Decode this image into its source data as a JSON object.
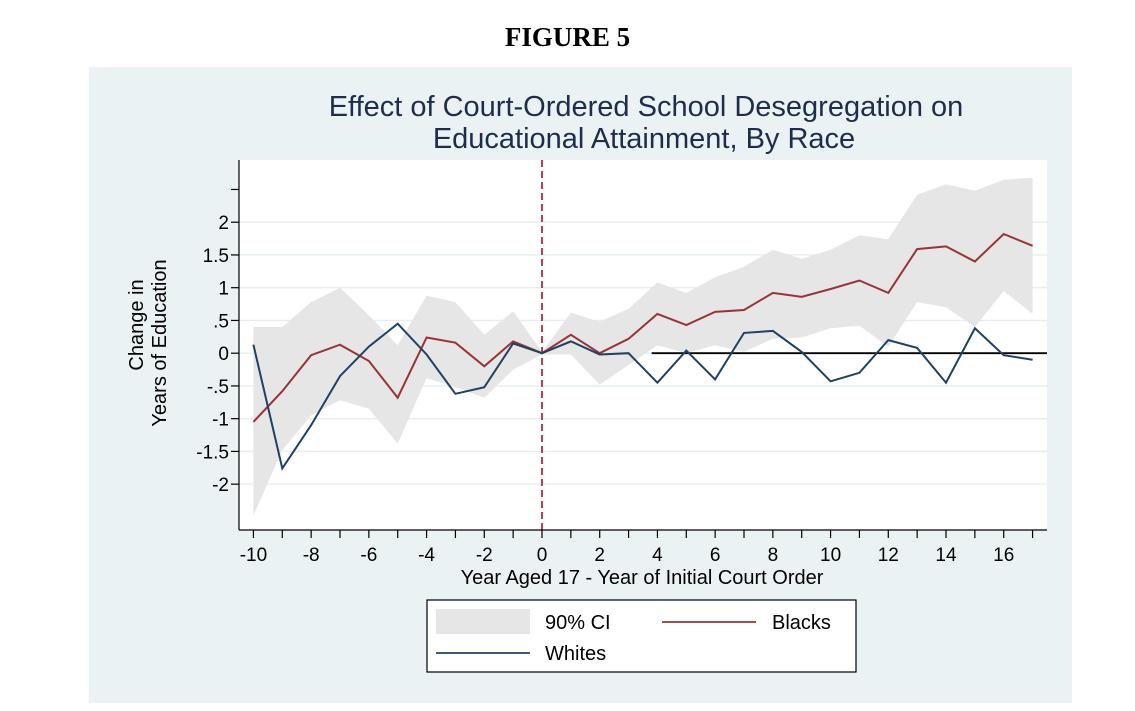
{
  "figure_label": "FIGURE 5",
  "chart_data": {
    "type": "line",
    "title_lines": [
      "Effect of Court-Ordered School Desegregation on",
      "Educational Attainment, By Race"
    ],
    "xlabel": "Year Aged 17 - Year of Initial Court Order",
    "ylabel_lines": [
      "Change in",
      "Years of Education"
    ],
    "xlim": [
      -10.5,
      17.5
    ],
    "ylim": [
      -2.7,
      2.95
    ],
    "x_ticks": [
      -10,
      -8,
      -6,
      -4,
      -2,
      0,
      2,
      4,
      6,
      8,
      10,
      12,
      14,
      16
    ],
    "y_ticks": [
      {
        "value": 2,
        "label": "2"
      },
      {
        "value": 1.5,
        "label": "1.5"
      },
      {
        "value": 1,
        "label": "1"
      },
      {
        "value": 0.5,
        "label": ".5"
      },
      {
        "value": 0,
        "label": "0"
      },
      {
        "value": -0.5,
        "label": "-.5"
      },
      {
        "value": -1,
        "label": "-1"
      },
      {
        "value": -1.5,
        "label": "-1.5"
      },
      {
        "value": -2,
        "label": "-2"
      }
    ],
    "y_minor_ticks": [
      2.5
    ],
    "x": [
      -10,
      -9,
      -8,
      -7,
      -6,
      -5,
      -4,
      -3,
      -2,
      -1,
      0,
      1,
      2,
      3,
      4,
      5,
      6,
      7,
      8,
      9,
      10,
      11,
      12,
      13,
      14,
      15,
      16,
      17
    ],
    "ci": {
      "name": "90% CI",
      "color": "#e6e6e6",
      "upper": [
        0.4,
        0.4,
        0.78,
        1.0,
        0.58,
        0.12,
        0.88,
        0.78,
        0.28,
        0.64,
        0.02,
        0.62,
        0.48,
        0.68,
        1.08,
        0.92,
        1.16,
        1.32,
        1.58,
        1.44,
        1.58,
        1.8,
        1.74,
        2.42,
        2.58,
        2.48,
        2.65,
        2.68
      ],
      "lower": [
        -2.48,
        -1.48,
        -0.95,
        -0.72,
        -0.85,
        -1.38,
        -0.38,
        -0.52,
        -0.68,
        -0.25,
        -0.02,
        -0.02,
        -0.48,
        -0.18,
        0.12,
        0.0,
        0.12,
        0.02,
        0.22,
        0.24,
        0.38,
        0.42,
        0.1,
        0.78,
        0.7,
        0.4,
        0.95,
        0.6
      ]
    },
    "series": [
      {
        "name": "Blacks",
        "color": "#9b3236",
        "values": [
          -1.05,
          -0.58,
          -0.03,
          0.13,
          -0.12,
          -0.68,
          0.24,
          0.16,
          -0.2,
          0.18,
          0.0,
          0.28,
          0.0,
          0.22,
          0.6,
          0.43,
          0.63,
          0.66,
          0.92,
          0.86,
          0.98,
          1.11,
          0.92,
          1.59,
          1.63,
          1.4,
          1.82,
          1.64
        ]
      },
      {
        "name": "Whites",
        "color": "#1d4263",
        "values": [
          0.13,
          -1.76,
          -1.1,
          -0.35,
          0.1,
          0.45,
          -0.02,
          -0.62,
          -0.52,
          0.15,
          0.0,
          0.18,
          -0.02,
          0.0,
          -0.45,
          0.04,
          -0.4,
          0.31,
          0.34,
          0.02,
          -0.43,
          -0.3,
          0.2,
          0.08,
          -0.45,
          0.38,
          -0.03,
          -0.1
        ]
      }
    ],
    "reference_lines": [
      {
        "axis": "y",
        "value": 0,
        "from_x": 3.8,
        "to_x": 17.5,
        "color": "#000000",
        "style": "solid"
      },
      {
        "axis": "x",
        "value": 0,
        "color": "#b8283c",
        "style": "dashed"
      }
    ],
    "grid": true,
    "legend": {
      "position": "bottom",
      "entries": [
        "90% CI",
        "Blacks",
        "Whites"
      ]
    }
  }
}
